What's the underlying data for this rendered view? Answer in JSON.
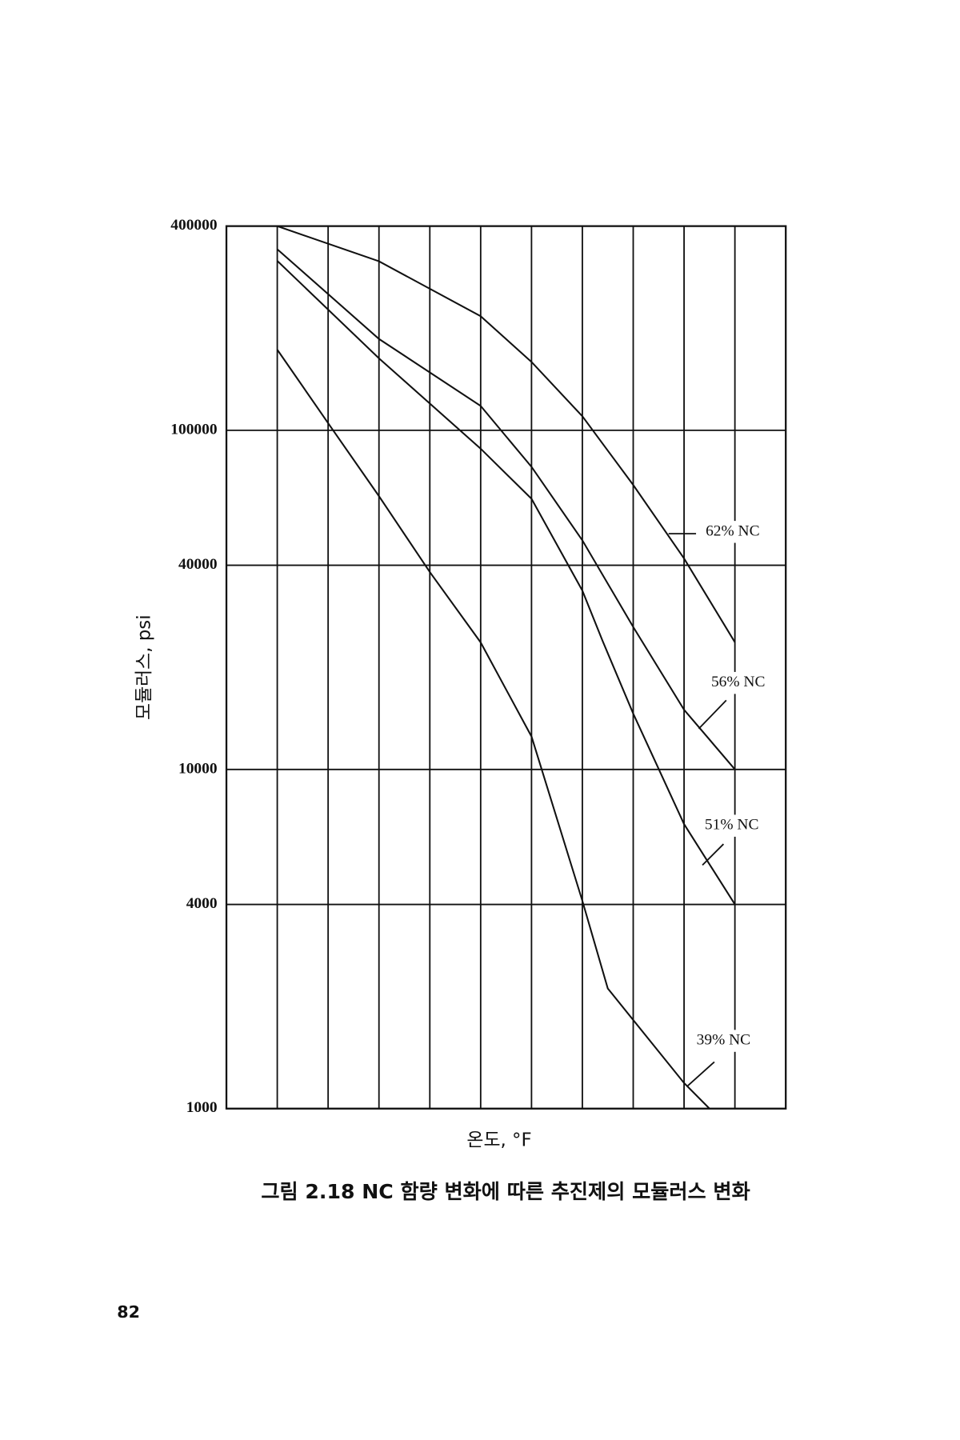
{
  "chart_data": {
    "type": "line",
    "y_label": "모듈러스, psi",
    "x_label": "온도, °F",
    "caption": "그림 2.18 NC 함량 변화에 따른 추진제의 모듈러스 변화",
    "page_number": "82",
    "ylog": true,
    "ylim": [
      1000,
      400000
    ],
    "yticks": [
      1000,
      4000,
      10000,
      40000,
      100000,
      400000
    ],
    "xlim": [
      0,
      11
    ],
    "xticks": [
      1,
      2,
      3,
      4,
      5,
      6,
      7,
      8,
      9,
      10
    ],
    "grid": true,
    "series": [
      {
        "name": "62% NC",
        "color": "#111111",
        "x": [
          1,
          3,
          5,
          6,
          7,
          8,
          9,
          10
        ],
        "values": [
          400000,
          315000,
          217000,
          159000,
          110000,
          69000,
          41900,
          23700
        ]
      },
      {
        "name": "56% NC",
        "color": "#111111",
        "x": [
          1,
          3,
          5,
          6,
          7,
          8,
          9,
          10
        ],
        "values": [
          342000,
          186000,
          118000,
          78000,
          47400,
          26300,
          15000,
          10000
        ]
      },
      {
        "name": "51% NC",
        "color": "#111111",
        "x": [
          1,
          3,
          5,
          6,
          7,
          7.4,
          8,
          9,
          10
        ],
        "values": [
          316000,
          163000,
          88300,
          62800,
          33700,
          23900,
          14600,
          6900,
          4000
        ]
      },
      {
        "name": "39% NC",
        "color": "#111111",
        "x": [
          1,
          2,
          3,
          4,
          5,
          6,
          7,
          7.5,
          9,
          9.5
        ],
        "values": [
          173000,
          105000,
          64000,
          38200,
          23700,
          12500,
          4100,
          2260,
          1190,
          1000
        ]
      }
    ]
  }
}
